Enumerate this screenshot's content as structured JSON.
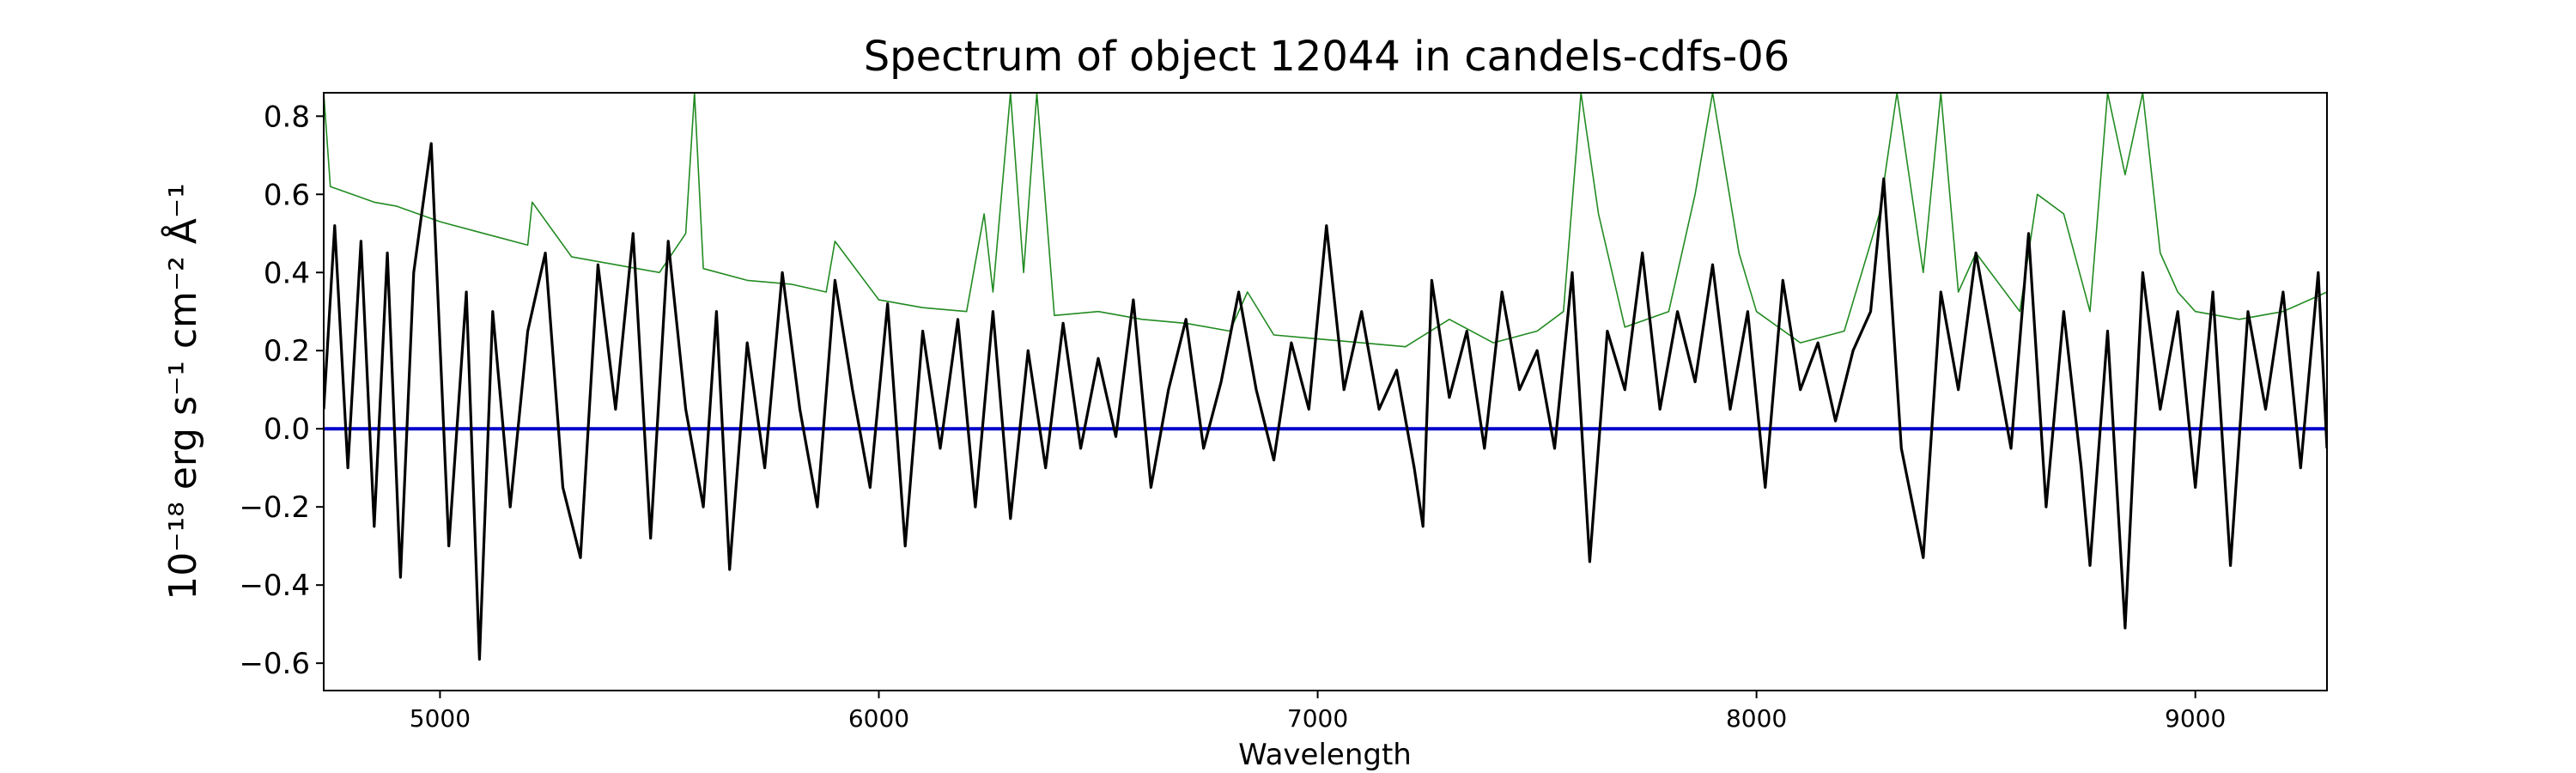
{
  "chart_data": {
    "type": "line",
    "title": "Spectrum of object 12044 in candels-cdfs-06",
    "xlabel": "Wavelength",
    "ylabel": "10⁻¹⁸ erg s⁻¹ cm⁻² Å⁻¹",
    "xlim": [
      4735,
      9300
    ],
    "ylim": [
      -0.67,
      0.86
    ],
    "x_ticks": [
      5000,
      6000,
      7000,
      8000,
      9000
    ],
    "y_ticks": [
      -0.6,
      -0.4,
      -0.2,
      0.0,
      0.2,
      0.4,
      0.6,
      0.8
    ],
    "y_tick_labels": [
      "−0.6",
      "−0.4",
      "−0.2",
      "0.0",
      "0.2",
      "0.4",
      "0.6",
      "0.8"
    ],
    "grid": false,
    "colors": {
      "flux": "#000000",
      "error": "#228b22",
      "zero": "#0000cc"
    },
    "series": [
      {
        "role": "flux",
        "x": [
          4735,
          4760,
          4790,
          4820,
          4850,
          4880,
          4910,
          4940,
          4980,
          5020,
          5060,
          5090,
          5120,
          5160,
          5200,
          5240,
          5280,
          5320,
          5360,
          5400,
          5440,
          5480,
          5520,
          5560,
          5600,
          5630,
          5660,
          5700,
          5740,
          5780,
          5820,
          5860,
          5900,
          5940,
          5980,
          6020,
          6060,
          6100,
          6140,
          6180,
          6220,
          6260,
          6300,
          6340,
          6380,
          6420,
          6460,
          6500,
          6540,
          6580,
          6620,
          6660,
          6700,
          6740,
          6780,
          6820,
          6860,
          6900,
          6940,
          6980,
          7020,
          7060,
          7100,
          7140,
          7180,
          7220,
          7240,
          7260,
          7300,
          7340,
          7380,
          7420,
          7460,
          7500,
          7540,
          7580,
          7620,
          7660,
          7700,
          7740,
          7780,
          7820,
          7860,
          7900,
          7940,
          7980,
          8020,
          8060,
          8100,
          8140,
          8180,
          8220,
          8260,
          8290,
          8330,
          8380,
          8420,
          8460,
          8500,
          8540,
          8580,
          8620,
          8660,
          8700,
          8740,
          8760,
          8800,
          8840,
          8880,
          8920,
          8960,
          9000,
          9040,
          9080,
          9120,
          9160,
          9200,
          9240,
          9280,
          9300
        ],
        "y": [
          0.05,
          0.52,
          -0.1,
          0.48,
          -0.25,
          0.45,
          -0.38,
          0.4,
          0.73,
          -0.3,
          0.35,
          -0.59,
          0.3,
          -0.2,
          0.25,
          0.45,
          -0.15,
          -0.33,
          0.42,
          0.05,
          0.5,
          -0.28,
          0.48,
          0.05,
          -0.2,
          0.3,
          -0.36,
          0.22,
          -0.1,
          0.4,
          0.05,
          -0.2,
          0.38,
          0.1,
          -0.15,
          0.32,
          -0.3,
          0.25,
          -0.05,
          0.28,
          -0.2,
          0.3,
          -0.23,
          0.2,
          -0.1,
          0.27,
          -0.05,
          0.18,
          -0.02,
          0.33,
          -0.15,
          0.1,
          0.28,
          -0.05,
          0.12,
          0.35,
          0.1,
          -0.08,
          0.22,
          0.05,
          0.52,
          0.1,
          0.3,
          0.05,
          0.15,
          -0.1,
          -0.25,
          0.38,
          0.08,
          0.25,
          -0.05,
          0.35,
          0.1,
          0.2,
          -0.05,
          0.4,
          -0.34,
          0.25,
          0.1,
          0.45,
          0.05,
          0.3,
          0.12,
          0.42,
          0.05,
          0.3,
          -0.15,
          0.38,
          0.1,
          0.22,
          0.02,
          0.2,
          0.3,
          0.64,
          -0.05,
          -0.33,
          0.35,
          0.1,
          0.45,
          0.2,
          -0.05,
          0.5,
          -0.2,
          0.3,
          -0.1,
          -0.35,
          0.25,
          -0.51,
          0.4,
          0.05,
          0.3,
          -0.15,
          0.35,
          -0.35,
          0.3,
          0.05,
          0.35,
          -0.1,
          0.4,
          -0.05
        ]
      },
      {
        "role": "error",
        "x": [
          4735,
          4750,
          4800,
          4850,
          4900,
          4950,
          5000,
          5100,
          5200,
          5210,
          5300,
          5400,
          5500,
          5560,
          5580,
          5600,
          5700,
          5800,
          5880,
          5900,
          6000,
          6100,
          6200,
          6240,
          6260,
          6300,
          6330,
          6360,
          6400,
          6500,
          6600,
          6700,
          6800,
          6840,
          6900,
          7000,
          7100,
          7200,
          7300,
          7400,
          7500,
          7560,
          7600,
          7640,
          7700,
          7800,
          7860,
          7900,
          7960,
          8000,
          8100,
          8200,
          8280,
          8320,
          8380,
          8420,
          8460,
          8500,
          8600,
          8640,
          8700,
          8760,
          8800,
          8840,
          8880,
          8920,
          8960,
          9000,
          9100,
          9200,
          9300
        ],
        "y": [
          0.86,
          0.62,
          0.6,
          0.58,
          0.57,
          0.55,
          0.53,
          0.5,
          0.47,
          0.58,
          0.44,
          0.42,
          0.4,
          0.5,
          0.86,
          0.41,
          0.38,
          0.37,
          0.35,
          0.48,
          0.33,
          0.31,
          0.3,
          0.55,
          0.35,
          0.86,
          0.4,
          0.86,
          0.29,
          0.3,
          0.28,
          0.27,
          0.25,
          0.35,
          0.24,
          0.23,
          0.22,
          0.21,
          0.28,
          0.22,
          0.25,
          0.3,
          0.86,
          0.55,
          0.26,
          0.3,
          0.6,
          0.86,
          0.45,
          0.3,
          0.22,
          0.25,
          0.55,
          0.86,
          0.4,
          0.86,
          0.35,
          0.45,
          0.3,
          0.6,
          0.55,
          0.3,
          0.86,
          0.65,
          0.86,
          0.45,
          0.35,
          0.3,
          0.28,
          0.3,
          0.35
        ]
      },
      {
        "role": "zero",
        "x": [
          4735,
          9300
        ],
        "y": [
          0.0,
          0.0
        ]
      }
    ]
  }
}
